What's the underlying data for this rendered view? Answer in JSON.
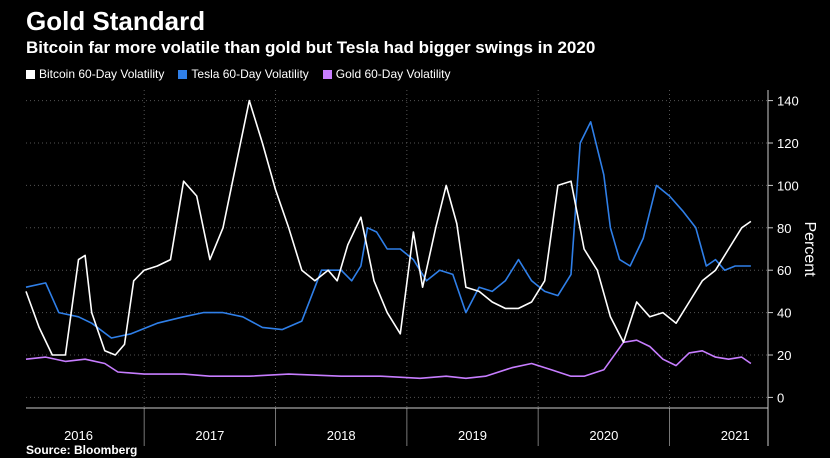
{
  "title": "Gold Standard",
  "subtitle": "Bitcoin far more volatile than gold but Tesla had bigger swings in 2020",
  "source": "Source: Bloomberg",
  "legend": [
    {
      "label": "Bitcoin 60-Day Volatility",
      "color": "#ffffff"
    },
    {
      "label": "Tesla 60-Day Volatility",
      "color": "#2f7fe8"
    },
    {
      "label": "Gold 60-Day Volatility",
      "color": "#c77dff"
    }
  ],
  "chart_data": {
    "type": "line",
    "ylabel": "Percent",
    "ylim": [
      -5,
      145
    ],
    "yticks": [
      0,
      20,
      40,
      60,
      80,
      100,
      120,
      140
    ],
    "xlim": [
      2015.6,
      2021.25
    ],
    "year_labels": [
      {
        "label": "2016",
        "x": 2016.0
      },
      {
        "label": "2017",
        "x": 2017.0
      },
      {
        "label": "2018",
        "x": 2018.0
      },
      {
        "label": "2019",
        "x": 2019.0
      },
      {
        "label": "2020",
        "x": 2020.0
      },
      {
        "label": "2021",
        "x": 2021.0
      }
    ],
    "grid": true,
    "legend_position": "top-left",
    "series": [
      {
        "name": "Bitcoin 60-Day Volatility",
        "color": "#ffffff",
        "x": [
          2015.6,
          2015.7,
          2015.8,
          2015.9,
          2016.0,
          2016.05,
          2016.1,
          2016.2,
          2016.28,
          2016.35,
          2016.42,
          2016.5,
          2016.6,
          2016.7,
          2016.8,
          2016.9,
          2017.0,
          2017.1,
          2017.2,
          2017.3,
          2017.4,
          2017.5,
          2017.6,
          2017.7,
          2017.8,
          2017.9,
          2017.97,
          2018.05,
          2018.15,
          2018.25,
          2018.35,
          2018.45,
          2018.55,
          2018.62,
          2018.72,
          2018.8,
          2018.88,
          2018.95,
          2019.05,
          2019.15,
          2019.25,
          2019.35,
          2019.45,
          2019.55,
          2019.65,
          2019.75,
          2019.85,
          2019.95,
          2020.05,
          2020.15,
          2020.25,
          2020.35,
          2020.45,
          2020.55,
          2020.65,
          2020.75,
          2020.85,
          2020.95,
          2021.05,
          2021.12
        ],
        "y": [
          50,
          33,
          20,
          20,
          65,
          67,
          40,
          22,
          20,
          25,
          55,
          60,
          62,
          65,
          102,
          95,
          65,
          80,
          110,
          140,
          120,
          98,
          80,
          60,
          55,
          60,
          55,
          72,
          85,
          55,
          40,
          30,
          78,
          52,
          80,
          100,
          82,
          52,
          50,
          45,
          42,
          42,
          45,
          55,
          100,
          102,
          70,
          60,
          38,
          26,
          45,
          38,
          40,
          35,
          45,
          55,
          60,
          70,
          80,
          83
        ]
      },
      {
        "name": "Tesla 60-Day Volatility",
        "color": "#2f7fe8",
        "x": [
          2015.6,
          2015.75,
          2015.85,
          2016.0,
          2016.1,
          2016.25,
          2016.4,
          2016.6,
          2016.8,
          2016.95,
          2017.1,
          2017.25,
          2017.4,
          2017.55,
          2017.7,
          2017.85,
          2018.0,
          2018.08,
          2018.15,
          2018.2,
          2018.27,
          2018.35,
          2018.45,
          2018.55,
          2018.65,
          2018.75,
          2018.85,
          2018.95,
          2019.05,
          2019.15,
          2019.25,
          2019.35,
          2019.45,
          2019.55,
          2019.65,
          2019.75,
          2019.82,
          2019.9,
          2020.0,
          2020.05,
          2020.12,
          2020.2,
          2020.3,
          2020.4,
          2020.5,
          2020.6,
          2020.7,
          2020.78,
          2020.85,
          2020.92,
          2021.0,
          2021.12
        ],
        "y": [
          52,
          54,
          40,
          38,
          35,
          28,
          30,
          35,
          38,
          40,
          40,
          38,
          33,
          32,
          36,
          60,
          60,
          55,
          62,
          80,
          78,
          70,
          70,
          65,
          55,
          60,
          58,
          40,
          52,
          50,
          55,
          65,
          55,
          50,
          48,
          58,
          120,
          130,
          105,
          80,
          65,
          62,
          75,
          100,
          95,
          88,
          80,
          62,
          65,
          60,
          62,
          62
        ]
      },
      {
        "name": "Gold 60-Day Volatility",
        "color": "#c77dff",
        "x": [
          2015.6,
          2015.75,
          2015.9,
          2016.05,
          2016.2,
          2016.3,
          2016.5,
          2016.8,
          2017.0,
          2017.3,
          2017.6,
          2018.0,
          2018.3,
          2018.6,
          2018.8,
          2018.95,
          2019.1,
          2019.3,
          2019.45,
          2019.6,
          2019.75,
          2019.85,
          2020.0,
          2020.15,
          2020.25,
          2020.35,
          2020.45,
          2020.55,
          2020.65,
          2020.75,
          2020.85,
          2020.95,
          2021.05,
          2021.12
        ],
        "y": [
          18,
          19,
          17,
          18,
          16,
          12,
          11,
          11,
          10,
          10,
          11,
          10,
          10,
          9,
          10,
          9,
          10,
          14,
          16,
          13,
          10,
          10,
          13,
          26,
          27,
          24,
          18,
          15,
          21,
          22,
          19,
          18,
          19,
          16
        ]
      }
    ]
  }
}
